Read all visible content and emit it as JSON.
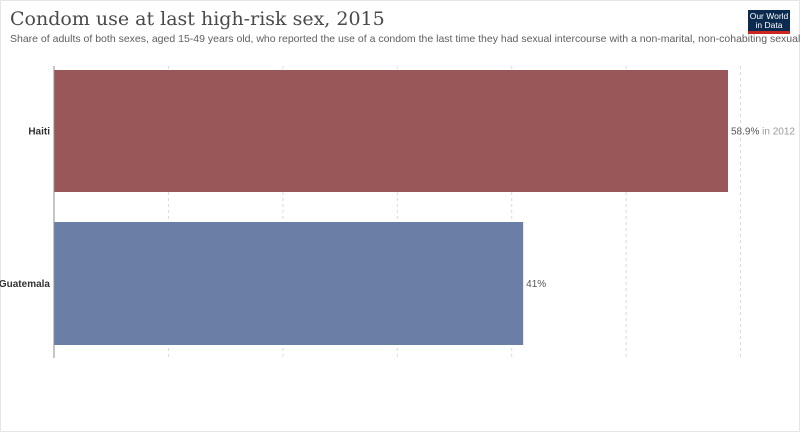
{
  "header": {
    "title": "Condom use at last high-risk sex, 2015",
    "subtitle": "Share of adults of both sexes, aged 15-49 years old, who reported the use of a condom the last time they had sexual intercourse with a non-marital, non-cohabiting sexual partner."
  },
  "logo": {
    "line1": "Our World",
    "line2": "in Data"
  },
  "chart_data": {
    "type": "bar",
    "orientation": "horizontal",
    "title": "Condom use at last high-risk sex, 2015",
    "categories": [
      "Haiti",
      "Guatemala"
    ],
    "values": [
      58.9,
      41
    ],
    "value_labels": [
      "58.9%",
      "41%"
    ],
    "value_notes": [
      "in 2012",
      ""
    ],
    "colors": [
      "#9a5759",
      "#6b7ea6"
    ],
    "xlim": [
      0,
      60
    ],
    "grid": true,
    "unit": "%"
  }
}
